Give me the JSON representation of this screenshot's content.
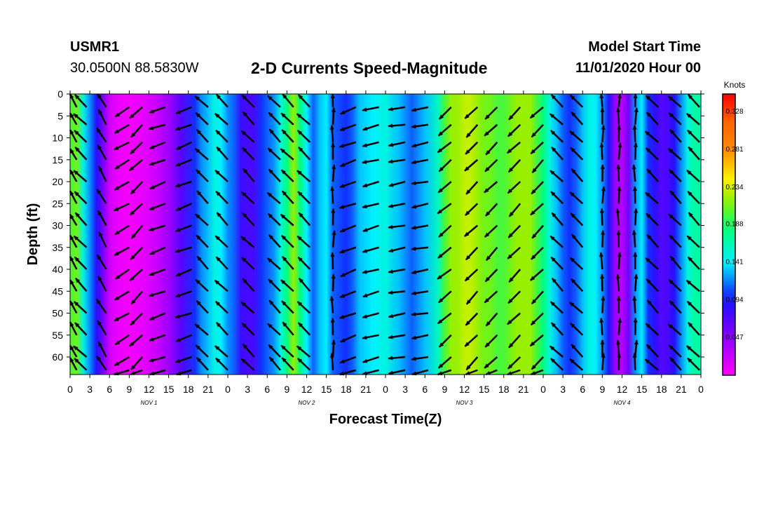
{
  "header": {
    "station_id": "USMR1",
    "location": "30.0500N 88.5830W",
    "title": "2-D Currents Speed-Magnitude",
    "start_label": "Model Start Time",
    "start_value": "11/01/2020 Hour 00"
  },
  "chart_data": {
    "type": "heatmap",
    "title": "2-D Currents Speed-Magnitude",
    "xlabel": "Forecast Time(Z)",
    "ylabel": "Depth (ft)",
    "x_range_hours": [
      0,
      96
    ],
    "ylim": [
      0,
      64
    ],
    "y_ticks": [
      0,
      5,
      10,
      15,
      20,
      25,
      30,
      35,
      40,
      45,
      50,
      55,
      60
    ],
    "x_tick_labels": [
      "0",
      "3",
      "6",
      "9",
      "12",
      "15",
      "18",
      "21",
      "0",
      "3",
      "6",
      "9",
      "12",
      "15",
      "18",
      "21",
      "0",
      "3",
      "6",
      "9",
      "12",
      "15",
      "18",
      "21",
      "0",
      "3",
      "6",
      "9",
      "12",
      "15",
      "18",
      "21",
      "0"
    ],
    "day_labels": [
      {
        "label": "NOV  1",
        "hour": 12
      },
      {
        "label": "NOV  2",
        "hour": 36
      },
      {
        "label": "NOV  3",
        "hour": 60
      },
      {
        "label": "NOV  4",
        "hour": 84
      }
    ],
    "colorbar": {
      "unit": "Knots",
      "min": 0.0,
      "max": 0.35,
      "tick_labels": [
        "0.328",
        "0.281",
        "0.234",
        "0.188",
        "0.141",
        "0.094",
        "0.047"
      ],
      "tick_values": [
        0.328,
        0.281,
        0.234,
        0.188,
        0.141,
        0.094,
        0.047
      ]
    },
    "speed_profile_hours": [
      0,
      1,
      2,
      3,
      4,
      5,
      6,
      7,
      9,
      11,
      13,
      15,
      17,
      19,
      20,
      21,
      22,
      23,
      24,
      25,
      26,
      27,
      28,
      29,
      31,
      32,
      33,
      34,
      35,
      36,
      37,
      38,
      39,
      40,
      42,
      43,
      44,
      46,
      48,
      50,
      51,
      52,
      54,
      56,
      57,
      58,
      59,
      60,
      61,
      62,
      63,
      64,
      65,
      66,
      67,
      68,
      69,
      70,
      71,
      72,
      73,
      74,
      75,
      76,
      77,
      78,
      79,
      80,
      81,
      82,
      83,
      84,
      85,
      86,
      87,
      88,
      89,
      90,
      91,
      92,
      93,
      94,
      95,
      96
    ],
    "speed_profile_knots": [
      0.2,
      0.21,
      0.15,
      0.12,
      0.09,
      0.055,
      0.02,
      0.01,
      0.005,
      0.01,
      0.02,
      0.04,
      0.07,
      0.1,
      0.12,
      0.13,
      0.15,
      0.14,
      0.12,
      0.11,
      0.08,
      0.075,
      0.075,
      0.1,
      0.12,
      0.15,
      0.18,
      0.22,
      0.18,
      0.14,
      0.11,
      0.13,
      0.14,
      0.11,
      0.1,
      0.11,
      0.13,
      0.14,
      0.15,
      0.13,
      0.12,
      0.11,
      0.13,
      0.16,
      0.2,
      0.22,
      0.22,
      0.23,
      0.23,
      0.22,
      0.21,
      0.21,
      0.2,
      0.2,
      0.21,
      0.22,
      0.22,
      0.22,
      0.2,
      0.18,
      0.15,
      0.13,
      0.11,
      0.1,
      0.11,
      0.13,
      0.15,
      0.14,
      0.12,
      0.09,
      0.04,
      0.03,
      0.06,
      0.12,
      0.14,
      0.1,
      0.085,
      0.07,
      0.075,
      0.09,
      0.12,
      0.15,
      0.17,
      0.165
    ],
    "vector_columns_hours": [
      1,
      2.5,
      5.5,
      9,
      11,
      14.5,
      18.5,
      21,
      24,
      28,
      32,
      34,
      36.5,
      40,
      43.5,
      47,
      51,
      54.5,
      58,
      62,
      65,
      68.5,
      72,
      75,
      78,
      81,
      83.5,
      86,
      89.5,
      93,
      96
    ],
    "vector_rows_ft": [
      3,
      7,
      11,
      15,
      20,
      25,
      30,
      35,
      40,
      45,
      50,
      55,
      60,
      63
    ],
    "vector_direction_deg": [
      135,
      135,
      120,
      210,
      225,
      200,
      200,
      135,
      135,
      135,
      135,
      135,
      135,
      90,
      200,
      195,
      190,
      190,
      220,
      225,
      225,
      225,
      225,
      135,
      135,
      90,
      90,
      90,
      135,
      135,
      135
    ]
  }
}
